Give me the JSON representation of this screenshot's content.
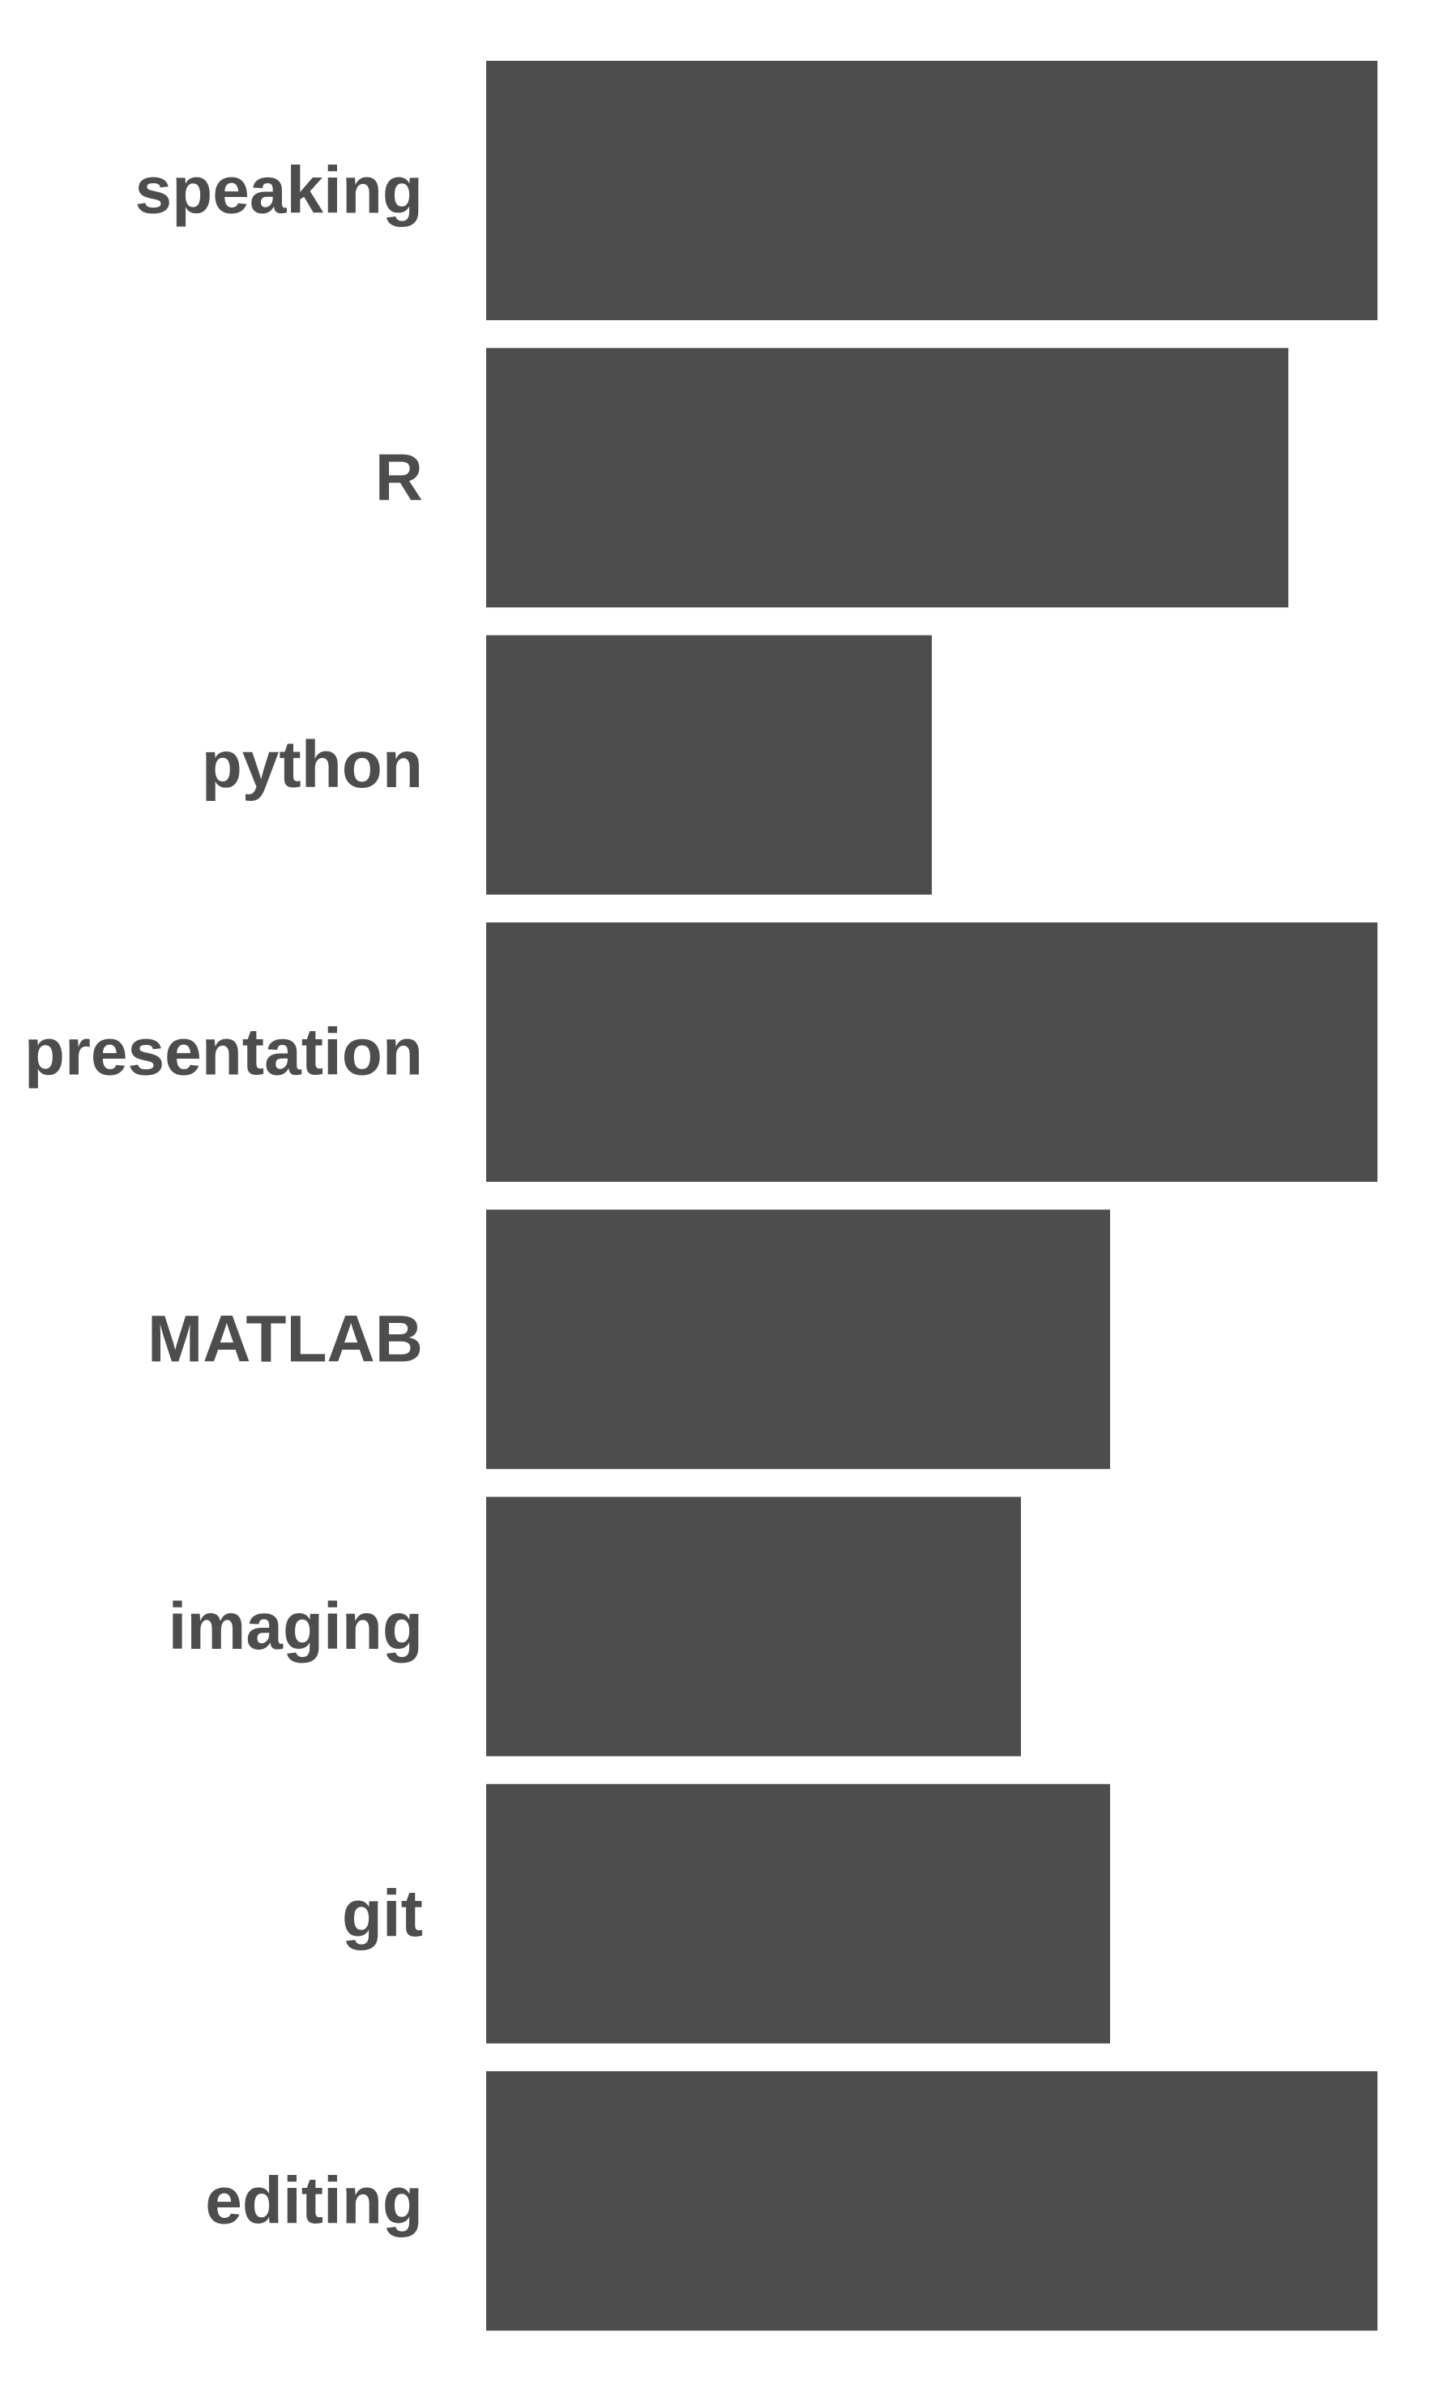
{
  "chart_data": {
    "type": "bar",
    "orientation": "horizontal",
    "categories": [
      "speaking",
      "R",
      "python",
      "presentation",
      "MATLAB",
      "imaging",
      "git",
      "editing"
    ],
    "values": [
      5,
      4.5,
      2.5,
      5,
      3.5,
      3,
      3.5,
      5
    ],
    "xlim": [
      0,
      5
    ],
    "grid": false,
    "axes_visible": false,
    "bar_color": "#4d4d4d",
    "label_color": "#4d4d4d"
  }
}
